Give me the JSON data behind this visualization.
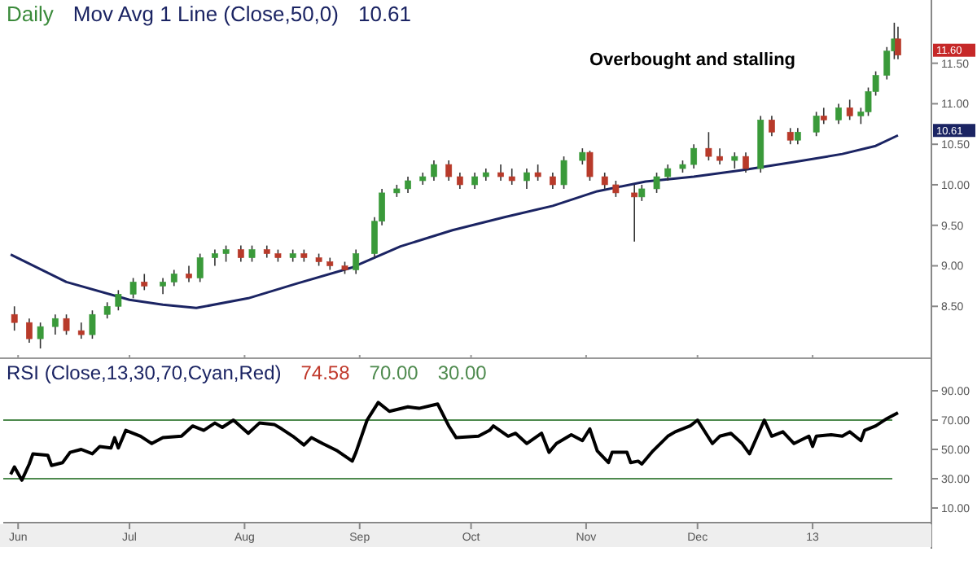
{
  "chart_data": [
    {
      "type": "candlestick",
      "title": "Daily",
      "xlim": [
        "2012-05-28",
        "2013-02-02"
      ],
      "xticks": [
        {
          "value": "2012-06-01",
          "label": null
        },
        {
          "value": "2012-07-01",
          "label": null
        },
        {
          "value": "2012-08-01",
          "label": null
        },
        {
          "value": "2012-09-01",
          "label": null
        },
        {
          "value": "2012-10-01",
          "label": null
        },
        {
          "value": "2012-11-01",
          "label": null
        },
        {
          "value": "2012-12-01",
          "label": null
        },
        {
          "value": "2013-01-01",
          "label": null
        }
      ],
      "ylim": [
        7.9,
        12.24
      ],
      "yticks": [
        {
          "value": 8.5,
          "label": "8.50"
        },
        {
          "value": 9,
          "label": "9.00"
        },
        {
          "value": 9.5,
          "label": "9.50"
        },
        {
          "value": 10,
          "label": "10.00"
        },
        {
          "value": 10.5,
          "label": "10.50"
        },
        {
          "value": 11,
          "label": "11.00"
        },
        {
          "value": 11.5,
          "label": "11.50"
        }
      ],
      "tick_labels": "y",
      "legend": false,
      "grid": false,
      "x": [
        "2012-05-31",
        "2012-06-04",
        "2012-06-07",
        "2012-06-11",
        "2012-06-14",
        "2012-06-18",
        "2012-06-21",
        "2012-06-25",
        "2012-06-28",
        "2012-07-02",
        "2012-07-05",
        "2012-07-10",
        "2012-07-13",
        "2012-07-17",
        "2012-07-20",
        "2012-07-24",
        "2012-07-27",
        "2012-07-31",
        "2012-08-03",
        "2012-08-07",
        "2012-08-10",
        "2012-08-14",
        "2012-08-17",
        "2012-08-21",
        "2012-08-24",
        "2012-08-28",
        "2012-08-31",
        "2012-09-05",
        "2012-09-07",
        "2012-09-11",
        "2012-09-14",
        "2012-09-18",
        "2012-09-21",
        "2012-09-25",
        "2012-09-28",
        "2012-10-02",
        "2012-10-05",
        "2012-10-09",
        "2012-10-12",
        "2012-10-16",
        "2012-10-19",
        "2012-10-23",
        "2012-10-26",
        "2012-10-31",
        "2012-11-02",
        "2012-11-06",
        "2012-11-09",
        "2012-11-14",
        "2012-11-16",
        "2012-11-20",
        "2012-11-23",
        "2012-11-27",
        "2012-11-30",
        "2012-12-04",
        "2012-12-07",
        "2012-12-11",
        "2012-12-14",
        "2012-12-18",
        "2012-12-21",
        "2012-12-26",
        "2012-12-28",
        "2013-01-02",
        "2013-01-04",
        "2013-01-08",
        "2013-01-11",
        "2013-01-14",
        "2013-01-16",
        "2013-01-18",
        "2013-01-21",
        "2013-01-23",
        "2013-01-24"
      ],
      "ohlc": [
        [
          8.4,
          8.5,
          8.2,
          8.3
        ],
        [
          8.3,
          8.35,
          8.05,
          8.1
        ],
        [
          8.1,
          8.3,
          7.98,
          8.25
        ],
        [
          8.25,
          8.4,
          8.15,
          8.35
        ],
        [
          8.35,
          8.4,
          8.15,
          8.2
        ],
        [
          8.2,
          8.3,
          8.1,
          8.15
        ],
        [
          8.15,
          8.45,
          8.1,
          8.4
        ],
        [
          8.4,
          8.55,
          8.35,
          8.5
        ],
        [
          8.5,
          8.7,
          8.45,
          8.65
        ],
        [
          8.65,
          8.85,
          8.6,
          8.8
        ],
        [
          8.8,
          8.9,
          8.7,
          8.75
        ],
        [
          8.75,
          8.85,
          8.65,
          8.8
        ],
        [
          8.8,
          8.95,
          8.75,
          8.9
        ],
        [
          8.9,
          9,
          8.8,
          8.85
        ],
        [
          8.85,
          9.15,
          8.8,
          9.1
        ],
        [
          9.1,
          9.2,
          9,
          9.15
        ],
        [
          9.15,
          9.25,
          9.05,
          9.2
        ],
        [
          9.2,
          9.25,
          9.05,
          9.1
        ],
        [
          9.1,
          9.25,
          9.05,
          9.2
        ],
        [
          9.2,
          9.25,
          9.1,
          9.15
        ],
        [
          9.15,
          9.2,
          9.05,
          9.1
        ],
        [
          9.1,
          9.2,
          9.05,
          9.15
        ],
        [
          9.15,
          9.2,
          9.05,
          9.1
        ],
        [
          9.1,
          9.15,
          9,
          9.05
        ],
        [
          9.05,
          9.1,
          8.95,
          9
        ],
        [
          9,
          9.05,
          8.9,
          8.95
        ],
        [
          8.95,
          9.2,
          8.9,
          9.15
        ],
        [
          9.15,
          9.6,
          9.1,
          9.55
        ],
        [
          9.55,
          9.95,
          9.5,
          9.9
        ],
        [
          9.9,
          10,
          9.85,
          9.95
        ],
        [
          9.95,
          10.1,
          9.9,
          10.05
        ],
        [
          10.05,
          10.15,
          10,
          10.1
        ],
        [
          10.1,
          10.3,
          10.05,
          10.25
        ],
        [
          10.25,
          10.3,
          10.05,
          10.1
        ],
        [
          10.1,
          10.15,
          9.95,
          10
        ],
        [
          10,
          10.15,
          9.95,
          10.1
        ],
        [
          10.1,
          10.2,
          10.05,
          10.15
        ],
        [
          10.15,
          10.25,
          10.05,
          10.1
        ],
        [
          10.1,
          10.2,
          10,
          10.05
        ],
        [
          10.05,
          10.2,
          9.95,
          10.15
        ],
        [
          10.15,
          10.25,
          10.05,
          10.1
        ],
        [
          10.1,
          10.15,
          9.95,
          10
        ],
        [
          10,
          10.35,
          9.95,
          10.3
        ],
        [
          10.3,
          10.45,
          10.25,
          10.4
        ],
        [
          10.4,
          10.42,
          10.05,
          10.1
        ],
        [
          10.1,
          10.15,
          9.95,
          10
        ],
        [
          10,
          10.05,
          9.85,
          9.9
        ],
        [
          9.9,
          10,
          9.3,
          9.85
        ],
        [
          9.85,
          10,
          9.8,
          9.95
        ],
        [
          9.95,
          10.15,
          9.9,
          10.1
        ],
        [
          10.1,
          10.25,
          10.05,
          10.2
        ],
        [
          10.2,
          10.3,
          10.15,
          10.25
        ],
        [
          10.25,
          10.5,
          10.2,
          10.45
        ],
        [
          10.45,
          10.65,
          10.3,
          10.35
        ],
        [
          10.35,
          10.45,
          10.25,
          10.3
        ],
        [
          10.3,
          10.4,
          10.2,
          10.35
        ],
        [
          10.35,
          10.4,
          10.15,
          10.2
        ],
        [
          10.2,
          10.85,
          10.15,
          10.8
        ],
        [
          10.8,
          10.85,
          10.6,
          10.65
        ],
        [
          10.65,
          10.7,
          10.5,
          10.55
        ],
        [
          10.55,
          10.7,
          10.5,
          10.65
        ],
        [
          10.65,
          10.9,
          10.6,
          10.85
        ],
        [
          10.85,
          10.95,
          10.75,
          10.8
        ],
        [
          10.8,
          11,
          10.75,
          10.95
        ],
        [
          10.95,
          11.05,
          10.8,
          10.85
        ],
        [
          10.85,
          10.95,
          10.75,
          10.9
        ],
        [
          10.9,
          11.2,
          10.85,
          11.15
        ],
        [
          11.15,
          11.4,
          11.1,
          11.35
        ],
        [
          11.35,
          11.7,
          11.3,
          11.65
        ],
        [
          11.65,
          12,
          11.55,
          11.8
        ],
        [
          11.8,
          11.95,
          11.55,
          11.6
        ]
      ],
      "series": [
        {
          "type": "line",
          "name": "Mov Avg 1 Line (Close,50,0)",
          "color": "#1b2463",
          "x": [
            "2012-05-30",
            "2012-06-14",
            "2012-07-01",
            "2012-07-10",
            "2012-07-19",
            "2012-08-02",
            "2012-08-15",
            "2012-08-30",
            "2012-09-12",
            "2012-09-26",
            "2012-10-10",
            "2012-10-23",
            "2012-11-04",
            "2012-11-17",
            "2012-11-30",
            "2012-12-13",
            "2012-12-27",
            "2013-01-09",
            "2013-01-18",
            "2013-01-24"
          ],
          "values": [
            9.14,
            8.8,
            8.58,
            8.52,
            8.48,
            8.6,
            8.78,
            8.98,
            9.24,
            9.44,
            9.6,
            9.74,
            9.92,
            10.04,
            10.1,
            10.18,
            10.28,
            10.38,
            10.48,
            10.61
          ]
        }
      ],
      "annotations": [
        "Overbought and stalling",
        "10.61",
        "10.61",
        "11.60"
      ]
    },
    {
      "type": "line",
      "title": "RSI (Close,13,30,70,Cyan,Red)",
      "xlim": [
        "2012-05-28",
        "2013-02-02"
      ],
      "xticks": [
        {
          "value": "2012-06-01",
          "label": "Jun"
        },
        {
          "value": "2012-07-01",
          "label": "Jul"
        },
        {
          "value": "2012-08-01",
          "label": "Aug"
        },
        {
          "value": "2012-09-01",
          "label": "Sep"
        },
        {
          "value": "2012-10-01",
          "label": "Oct"
        },
        {
          "value": "2012-11-01",
          "label": "Nov"
        },
        {
          "value": "2012-12-01",
          "label": "Dec"
        },
        {
          "value": "2013-01-01",
          "label": "13"
        }
      ],
      "ylim": [
        0,
        110
      ],
      "yticks": [
        {
          "value": 10,
          "label": "10.00"
        },
        {
          "value": 30,
          "label": "30.00"
        },
        {
          "value": 50,
          "label": "50.00"
        },
        {
          "value": 70,
          "label": "70.00"
        },
        {
          "value": 90,
          "label": "90.00"
        }
      ],
      "legend": false,
      "grid": false,
      "marker": "none",
      "line_style": "solid",
      "ref_lines": [
        {
          "axis": "y",
          "value": 70,
          "label": "70.00",
          "color": "#4e8a4e"
        },
        {
          "axis": "y",
          "value": 30,
          "label": "30.00",
          "color": "#4e8a4e"
        }
      ],
      "series": [
        {
          "color": "#000000",
          "x": [
            "2012-05-30",
            "2012-05-31",
            "2012-06-02",
            "2012-06-04",
            "2012-06-05",
            "2012-06-09",
            "2012-06-10",
            "2012-06-13",
            "2012-06-15",
            "2012-06-18",
            "2012-06-21",
            "2012-06-23",
            "2012-06-26",
            "2012-06-27",
            "2012-06-28",
            "2012-06-30",
            "2012-07-04",
            "2012-07-07",
            "2012-07-10",
            "2012-07-15",
            "2012-07-18",
            "2012-07-21",
            "2012-07-24",
            "2012-07-26",
            "2012-07-29",
            "2012-08-02",
            "2012-08-05",
            "2012-08-09",
            "2012-08-11",
            "2012-08-14",
            "2012-08-17",
            "2012-08-19",
            "2012-08-22",
            "2012-08-26",
            "2012-08-30",
            "2012-08-31",
            "2012-09-03",
            "2012-09-06",
            "2012-09-09",
            "2012-09-14",
            "2012-09-17",
            "2012-09-22",
            "2012-09-25",
            "2012-09-27",
            "2012-10-03",
            "2012-10-06",
            "2012-10-07",
            "2012-10-11",
            "2012-10-13",
            "2012-10-16",
            "2012-10-20",
            "2012-10-22",
            "2012-10-24",
            "2012-10-28",
            "2012-10-31",
            "2012-11-02",
            "2012-11-04",
            "2012-11-07",
            "2012-11-08",
            "2012-11-12",
            "2012-11-13",
            "2012-11-15",
            "2012-11-16",
            "2012-11-19",
            "2012-11-23",
            "2012-11-25",
            "2012-11-29",
            "2012-12-01",
            "2012-12-05",
            "2012-12-07",
            "2012-12-10",
            "2012-12-13",
            "2012-12-15",
            "2012-12-19",
            "2012-12-21",
            "2012-12-24",
            "2012-12-27",
            "2012-12-31",
            "2013-01-01",
            "2013-01-02",
            "2013-01-06",
            "2013-01-09",
            "2013-01-11",
            "2013-01-14",
            "2013-01-15",
            "2013-01-18",
            "2013-01-21",
            "2013-01-24"
          ],
          "values": [
            33,
            38,
            29,
            40,
            47,
            46,
            39,
            41,
            48,
            50,
            47,
            52,
            51,
            58,
            51,
            63,
            59,
            54,
            58,
            59,
            66,
            63,
            68,
            65,
            70,
            61,
            68,
            67,
            64,
            59,
            53,
            58,
            54,
            49,
            42,
            48,
            70,
            82,
            76,
            79,
            78,
            81,
            66,
            58,
            59,
            63,
            66,
            59,
            61,
            54,
            61,
            48,
            54,
            60,
            56,
            64,
            49,
            41,
            48,
            48,
            41,
            42,
            40,
            49,
            59,
            62,
            66,
            70,
            54,
            59,
            61,
            54,
            47,
            70,
            59,
            62,
            54,
            59,
            52,
            59,
            60,
            59,
            62,
            56,
            63,
            66,
            71,
            75
          ]
        }
      ],
      "annotations": [
        "74.58"
      ]
    }
  ]
}
